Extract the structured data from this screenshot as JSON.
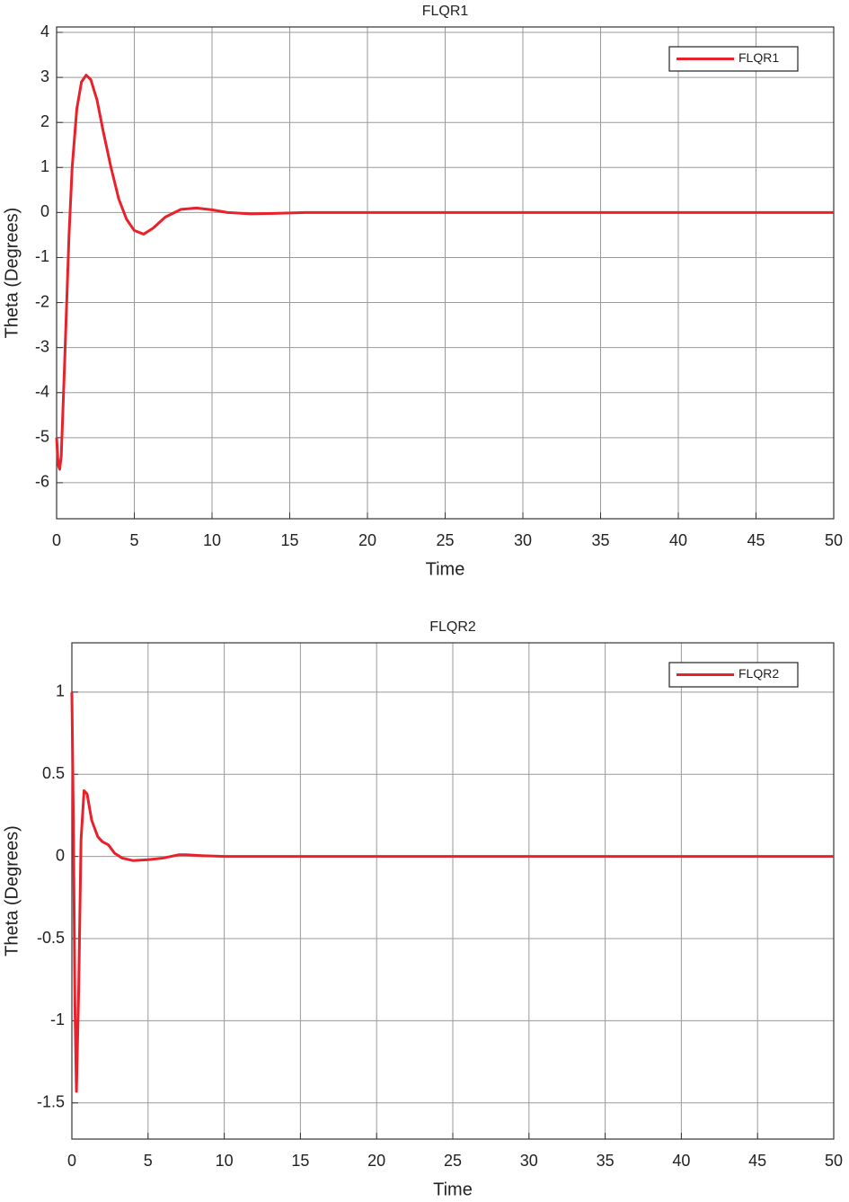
{
  "chart_data": [
    {
      "type": "line",
      "title": "FLQR1",
      "xlabel": "Time",
      "ylabel": "Theta (Degrees)",
      "x": [
        0,
        0.1,
        0.2,
        0.3,
        0.5,
        0.8,
        1.0,
        1.3,
        1.6,
        1.9,
        2.2,
        2.6,
        3.0,
        3.5,
        4.0,
        4.5,
        5.0,
        5.6,
        6.2,
        7.0,
        8.0,
        9.0,
        10.0,
        11.0,
        12.5,
        14,
        16,
        20,
        30,
        40,
        50
      ],
      "series": [
        {
          "name": "FLQR1",
          "color": "#e8212a",
          "values": [
            -5.0,
            -5.6,
            -5.7,
            -5.4,
            -3.5,
            -0.5,
            1.0,
            2.3,
            2.9,
            3.05,
            2.95,
            2.5,
            1.8,
            1.0,
            0.3,
            -0.15,
            -0.4,
            -0.48,
            -0.35,
            -0.1,
            0.07,
            0.1,
            0.06,
            0.0,
            -0.03,
            -0.02,
            0,
            0,
            0,
            0,
            0
          ]
        }
      ],
      "xlim": [
        0,
        50
      ],
      "xticks": [
        0,
        5,
        10,
        15,
        20,
        25,
        30,
        35,
        40,
        45,
        50
      ],
      "ylim": [
        -6.8,
        4.12
      ],
      "yticks": [
        -6,
        -5,
        -4,
        -3,
        -2,
        -1,
        0,
        1,
        2,
        3,
        4
      ],
      "grid": true,
      "legend": "upper right"
    },
    {
      "type": "line",
      "title": "FLQR2",
      "xlabel": "Time",
      "ylabel": "Theta (Degrees)",
      "x": [
        0,
        0.1,
        0.2,
        0.3,
        0.45,
        0.6,
        0.8,
        1.0,
        1.3,
        1.7,
        2.0,
        2.4,
        2.8,
        3.3,
        4.0,
        5.0,
        6.0,
        7.0,
        7.5,
        8.5,
        10,
        12,
        50
      ],
      "series": [
        {
          "name": "FLQR2",
          "color": "#e8212a",
          "values": [
            1.0,
            0.2,
            -0.9,
            -1.43,
            -0.8,
            0.1,
            0.4,
            0.38,
            0.22,
            0.12,
            0.09,
            0.07,
            0.02,
            -0.01,
            -0.025,
            -0.02,
            -0.01,
            0.01,
            0.01,
            0.005,
            0,
            0,
            0
          ]
        }
      ],
      "xlim": [
        0,
        50
      ],
      "xticks": [
        0,
        5,
        10,
        15,
        20,
        25,
        30,
        35,
        40,
        45,
        50
      ],
      "ylim": [
        -1.72,
        1.3
      ],
      "yticks": [
        -1.5,
        -1,
        -0.5,
        0,
        0.5,
        1
      ],
      "grid": true,
      "legend": "upper right"
    }
  ]
}
